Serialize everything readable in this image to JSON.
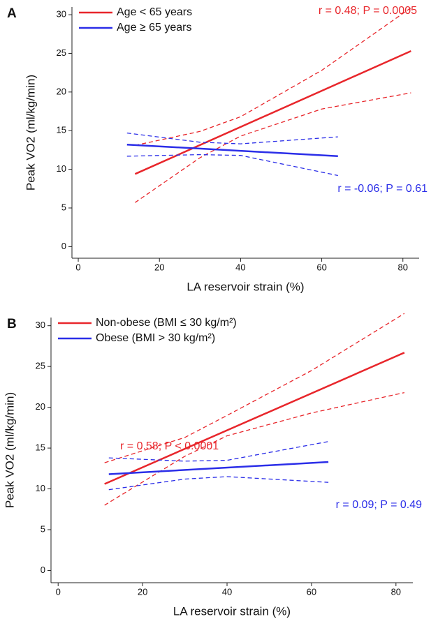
{
  "chart_data": [
    {
      "type": "line",
      "panel_label": "A",
      "x_label": "LA reservoir strain (%)",
      "y_label": "Peak VO2 (ml/kg/min)",
      "xlim": [
        -5,
        84
      ],
      "ylim": [
        -1.5,
        31
      ],
      "xticks": [
        0,
        20,
        40,
        60,
        80
      ],
      "yticks": [
        0,
        5,
        10,
        15,
        20,
        25,
        30
      ],
      "series": [
        {
          "name": "Age < 65 years",
          "color": "#e8262b",
          "x": [
            14,
            82
          ],
          "values": [
            9.4,
            25.3
          ],
          "ci_x": [
            14,
            30,
            40,
            60,
            82
          ],
          "ci_upper": [
            13.1,
            14.9,
            16.8,
            22.8,
            30.9
          ],
          "ci_lower": [
            5.7,
            11.5,
            14.3,
            17.8,
            19.9
          ]
        },
        {
          "name": "Age ≥ 65 years",
          "color": "#2b2ee8",
          "x": [
            12,
            64
          ],
          "values": [
            13.2,
            11.7
          ],
          "ci_x": [
            12,
            30,
            40,
            64
          ],
          "ci_upper": [
            14.7,
            13.5,
            13.3,
            14.2
          ],
          "ci_lower": [
            11.7,
            11.9,
            11.8,
            9.2
          ]
        }
      ],
      "annotations": [
        {
          "text": "r = 0.48; P = 0.0005",
          "color": "#e8262b"
        },
        {
          "text": "r = -0.06; P = 0.61",
          "color": "#2b2ee8"
        }
      ]
    },
    {
      "type": "line",
      "panel_label": "B",
      "x_label": "LA reservoir strain (%)",
      "y_label": "Peak VO2 (ml/kg/min)",
      "xlim": [
        -5,
        84
      ],
      "ylim": [
        -1.5,
        31
      ],
      "xticks": [
        0,
        20,
        40,
        60,
        80
      ],
      "yticks": [
        0,
        5,
        10,
        15,
        20,
        25,
        30
      ],
      "series": [
        {
          "name": "Non-obese (BMI ≤ 30 kg/m²)",
          "color": "#e8262b",
          "x": [
            11,
            82
          ],
          "values": [
            10.6,
            26.7
          ],
          "ci_x": [
            11,
            30,
            40,
            60,
            82
          ],
          "ci_upper": [
            13.2,
            16.3,
            19.0,
            24.5,
            31.5
          ],
          "ci_lower": [
            8.0,
            14.0,
            16.5,
            19.3,
            21.8
          ]
        },
        {
          "name": "Obese (BMI > 30 kg/m²)",
          "color": "#2b2ee8",
          "x": [
            12,
            64
          ],
          "values": [
            11.8,
            13.3
          ],
          "ci_x": [
            12,
            30,
            40,
            64
          ],
          "ci_upper": [
            13.8,
            13.4,
            13.5,
            15.8
          ],
          "ci_lower": [
            9.9,
            11.2,
            11.5,
            10.8
          ]
        }
      ],
      "annotations": [
        {
          "text": "r = 0.58; P < 0.0001",
          "color": "#e8262b"
        },
        {
          "text": "r = 0.09; P = 0.49",
          "color": "#2b2ee8"
        }
      ]
    }
  ]
}
